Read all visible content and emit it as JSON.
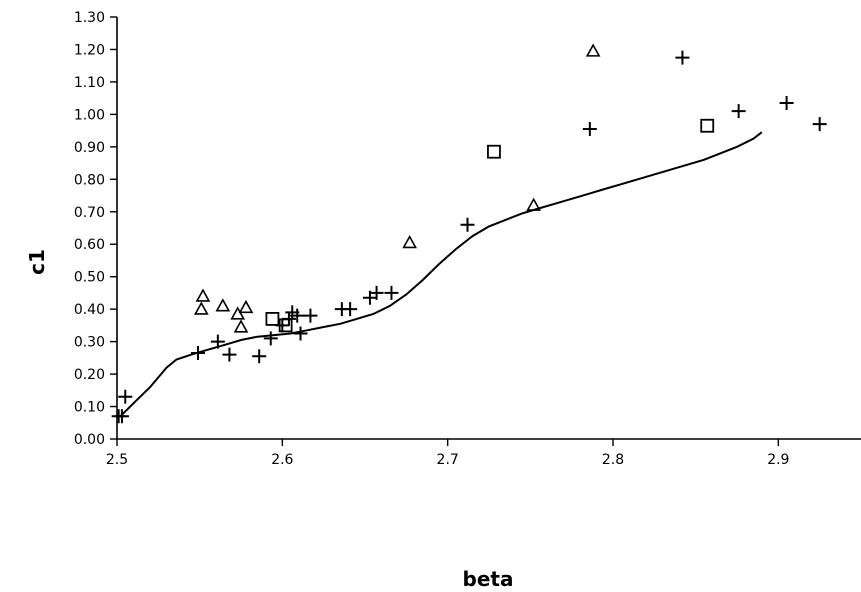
{
  "chart_data": {
    "type": "scatter",
    "title": "",
    "xlabel": "beta",
    "ylabel": "c1",
    "xlim": [
      2.5,
      2.95
    ],
    "ylim": [
      0.0,
      1.3
    ],
    "grid": false,
    "x_ticks": [
      2.5,
      2.6,
      2.7,
      2.8,
      2.9
    ],
    "x_tick_labels": [
      "2.5",
      "2.6",
      "2.7",
      "2.8",
      "2.9"
    ],
    "y_ticks": [
      0.0,
      0.1,
      0.2,
      0.3,
      0.4,
      0.5,
      0.6,
      0.7,
      0.8,
      0.9,
      1.0,
      1.1,
      1.2,
      1.3
    ],
    "y_tick_labels": [
      "0.00",
      "0.10",
      "0.20",
      "0.30",
      "0.40",
      "0.50",
      "0.60",
      "0.70",
      "0.80",
      "0.90",
      "1.00",
      "1.10",
      "1.20",
      "1.30"
    ],
    "series": [
      {
        "marker": "plus",
        "points": [
          [
            2.501,
            0.07
          ],
          [
            2.503,
            0.07
          ],
          [
            2.505,
            0.13
          ],
          [
            2.549,
            0.265
          ],
          [
            2.561,
            0.3
          ],
          [
            2.568,
            0.26
          ],
          [
            2.586,
            0.255
          ],
          [
            2.593,
            0.31
          ],
          [
            2.6,
            0.35
          ],
          [
            2.604,
            0.37
          ],
          [
            2.606,
            0.39
          ],
          [
            2.609,
            0.38
          ],
          [
            2.611,
            0.325
          ],
          [
            2.617,
            0.38
          ],
          [
            2.636,
            0.4
          ],
          [
            2.641,
            0.4
          ],
          [
            2.653,
            0.435
          ],
          [
            2.657,
            0.45
          ],
          [
            2.666,
            0.45
          ],
          [
            2.712,
            0.66
          ],
          [
            2.786,
            0.955
          ],
          [
            2.842,
            1.175
          ],
          [
            2.876,
            1.01
          ],
          [
            2.905,
            1.035
          ],
          [
            2.925,
            0.97
          ]
        ]
      },
      {
        "marker": "triangle",
        "points": [
          [
            2.551,
            0.4
          ],
          [
            2.552,
            0.44
          ],
          [
            2.564,
            0.41
          ],
          [
            2.573,
            0.385
          ],
          [
            2.575,
            0.345
          ],
          [
            2.578,
            0.405
          ],
          [
            2.677,
            0.605
          ],
          [
            2.752,
            0.72
          ],
          [
            2.788,
            1.195
          ]
        ]
      },
      {
        "marker": "square",
        "points": [
          [
            2.594,
            0.37
          ],
          [
            2.602,
            0.35
          ],
          [
            2.728,
            0.885
          ],
          [
            2.857,
            0.965
          ]
        ]
      },
      {
        "marker": "line",
        "points": [
          [
            2.502,
            0.07
          ],
          [
            2.51,
            0.11
          ],
          [
            2.52,
            0.16
          ],
          [
            2.53,
            0.22
          ],
          [
            2.536,
            0.245
          ],
          [
            2.545,
            0.26
          ],
          [
            2.555,
            0.275
          ],
          [
            2.565,
            0.29
          ],
          [
            2.575,
            0.305
          ],
          [
            2.585,
            0.315
          ],
          [
            2.595,
            0.32
          ],
          [
            2.605,
            0.325
          ],
          [
            2.615,
            0.335
          ],
          [
            2.625,
            0.345
          ],
          [
            2.635,
            0.355
          ],
          [
            2.645,
            0.37
          ],
          [
            2.655,
            0.385
          ],
          [
            2.665,
            0.41
          ],
          [
            2.675,
            0.445
          ],
          [
            2.685,
            0.49
          ],
          [
            2.695,
            0.54
          ],
          [
            2.705,
            0.585
          ],
          [
            2.715,
            0.625
          ],
          [
            2.725,
            0.655
          ],
          [
            2.735,
            0.675
          ],
          [
            2.745,
            0.695
          ],
          [
            2.755,
            0.71
          ],
          [
            2.765,
            0.725
          ],
          [
            2.775,
            0.74
          ],
          [
            2.785,
            0.755
          ],
          [
            2.795,
            0.77
          ],
          [
            2.805,
            0.785
          ],
          [
            2.815,
            0.8
          ],
          [
            2.825,
            0.815
          ],
          [
            2.835,
            0.83
          ],
          [
            2.845,
            0.845
          ],
          [
            2.855,
            0.86
          ],
          [
            2.865,
            0.88
          ],
          [
            2.875,
            0.9
          ],
          [
            2.885,
            0.925
          ],
          [
            2.89,
            0.945
          ]
        ]
      }
    ]
  }
}
